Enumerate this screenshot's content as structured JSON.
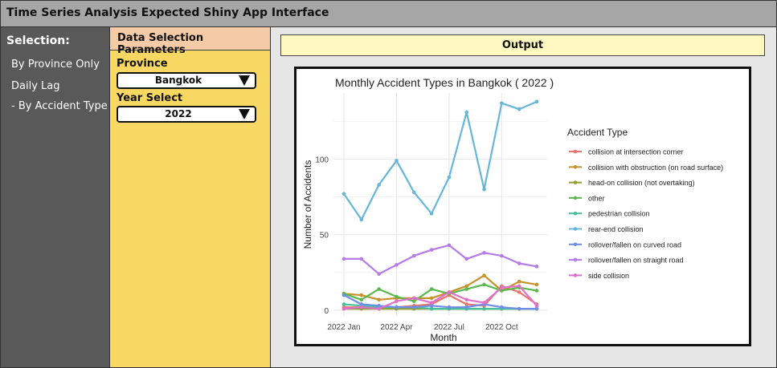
{
  "app": {
    "title": "Time Series Analysis Expected Shiny App Interface"
  },
  "sidebar": {
    "heading": "Selection:",
    "items": [
      {
        "label": "By Province Only"
      },
      {
        "label": "Daily Lag"
      },
      {
        "label": "- By Accident Type"
      }
    ]
  },
  "params": {
    "heading": "Data Selection Parameters",
    "province": {
      "label": "Province",
      "value": "Bangkok"
    },
    "year": {
      "label": "Year Select",
      "value": "2022"
    }
  },
  "output": {
    "heading": "Output"
  },
  "chart_data": {
    "type": "line",
    "title": "Monthly Accident Types in Bangkok ( 2022 )",
    "xlabel": "Month",
    "ylabel": "Number of Accidents",
    "x": [
      "2022-01",
      "2022-02",
      "2022-03",
      "2022-04",
      "2022-05",
      "2022-06",
      "2022-07",
      "2022-08",
      "2022-09",
      "2022-10",
      "2022-11",
      "2022-12"
    ],
    "xticks": [
      "2022 Jan",
      "2022 Apr",
      "2022 Jul",
      "2022 Oct"
    ],
    "xtick_months": [
      1,
      4,
      7,
      10
    ],
    "ylim": [
      0,
      140
    ],
    "yticks": [
      0,
      50,
      100
    ],
    "grid": true,
    "legend_title": "Accident Type",
    "legend_position": "right",
    "series": [
      {
        "name": "collision at intersection corner",
        "color": "#e8756b",
        "values": [
          2,
          2,
          2,
          2,
          3,
          4,
          10,
          4,
          3,
          16,
          12,
          4
        ]
      },
      {
        "name": "collision with obstruction (on road surface)",
        "color": "#c8922b",
        "values": [
          11,
          10,
          7,
          8,
          8,
          8,
          12,
          16,
          23,
          13,
          19,
          17
        ]
      },
      {
        "name": "head-on collision (not overtaking)",
        "color": "#8f9e2e",
        "values": [
          1,
          1,
          1,
          1,
          1,
          1,
          1,
          1,
          1,
          1,
          1,
          1
        ]
      },
      {
        "name": "other",
        "color": "#5bb84f",
        "values": [
          11,
          7,
          14,
          9,
          6,
          14,
          11,
          14,
          17,
          13,
          15,
          13
        ]
      },
      {
        "name": "pedestrian collision",
        "color": "#45c09a",
        "values": [
          4,
          3,
          2,
          2,
          2,
          1,
          1,
          1,
          1,
          1,
          1,
          1
        ]
      },
      {
        "name": "rear-end collision",
        "color": "#66b6dc",
        "values": [
          77,
          60,
          83,
          99,
          78,
          64,
          88,
          131,
          80,
          137,
          133,
          138
        ]
      },
      {
        "name": "rollover/fallen on curved road",
        "color": "#6e8ee8",
        "values": [
          10,
          4,
          3,
          2,
          2,
          3,
          2,
          2,
          4,
          2,
          1,
          1
        ]
      },
      {
        "name": "rollover/fallen on straight road",
        "color": "#b57be6",
        "values": [
          34,
          34,
          24,
          30,
          36,
          40,
          43,
          34,
          38,
          36,
          31,
          29
        ]
      },
      {
        "name": "side collision",
        "color": "#e06fcc",
        "values": [
          1,
          2,
          1,
          6,
          8,
          5,
          12,
          7,
          5,
          15,
          16,
          3
        ]
      }
    ]
  }
}
